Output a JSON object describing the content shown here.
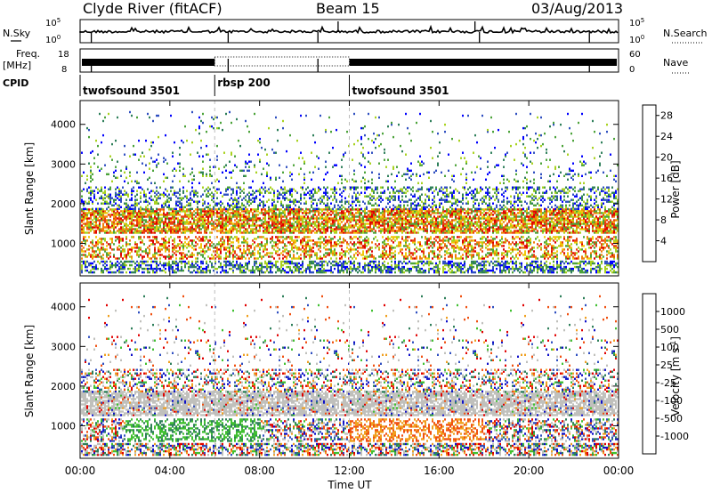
{
  "header": {
    "station": "Clyde River (fitACF)",
    "beam": "Beam 15",
    "date": "03/Aug/2013"
  },
  "top_panels": {
    "nsky_label": "N.Sky",
    "nsky_ticks": [
      "10^5",
      "10^0"
    ],
    "nsearch_label": "N.Search",
    "nsearch_ticks": [
      "10^5",
      "10^0"
    ],
    "freq_label_1": "Freq.",
    "freq_label_2": "[MHz]",
    "freq_ticks": [
      "18",
      "8"
    ],
    "nave_label": "Nave",
    "nave_ticks": [
      "60",
      "0"
    ],
    "cpid_label": "CPID"
  },
  "cpid_segments": [
    {
      "label": "twofsound 3501",
      "start_hour": 0,
      "end_hour": 6
    },
    {
      "label": "rbsp 200",
      "start_hour": 6,
      "end_hour": 12
    },
    {
      "label": "twofsound 3501",
      "start_hour": 12,
      "end_hour": 24
    }
  ],
  "colors": {
    "power": [
      "#0000ff",
      "#2f4fc0",
      "#2e7f5a",
      "#4ca33a",
      "#a8d21e",
      "#f0c80a",
      "#f07f0a",
      "#e84010",
      "#e00000"
    ],
    "velocity": [
      "#e00000",
      "#f05010",
      "#f0a020",
      "#c0c0bc",
      "#c0c0bc",
      "#40c030",
      "#2e7f5a",
      "#2f4fc0",
      "#1010c8"
    ]
  },
  "chart_data": [
    {
      "type": "heatmap",
      "name": "power",
      "xlabel": "",
      "ylabel": "Slant Range [km]",
      "x_ticks": [
        "00:00",
        "04:00",
        "08:00",
        "12:00",
        "16:00",
        "20:00",
        "00:00"
      ],
      "xlim": [
        0,
        24
      ],
      "y_ticks": [
        1000,
        2000,
        3000,
        4000
      ],
      "ylim": [
        180,
        4600
      ],
      "colorbar_label": "Power [dB]",
      "colorbar_ticks": [
        4,
        8,
        12,
        16,
        20,
        24,
        28
      ],
      "colorbar_range": [
        0,
        30
      ]
    },
    {
      "type": "heatmap",
      "name": "velocity",
      "xlabel": "Time UT",
      "ylabel": "Slant Range [km]",
      "x_ticks": [
        "00:00",
        "04:00",
        "08:00",
        "12:00",
        "16:00",
        "20:00",
        "00:00"
      ],
      "xlim": [
        0,
        24
      ],
      "y_ticks": [
        1000,
        2000,
        3000,
        4000
      ],
      "ylim": [
        180,
        4600
      ],
      "colorbar_label": "Velocity [m s^-1]",
      "colorbar_ticks": [
        "1000",
        "500",
        "100",
        "25",
        "-25",
        "-100",
        "-500",
        "-1000"
      ]
    }
  ]
}
